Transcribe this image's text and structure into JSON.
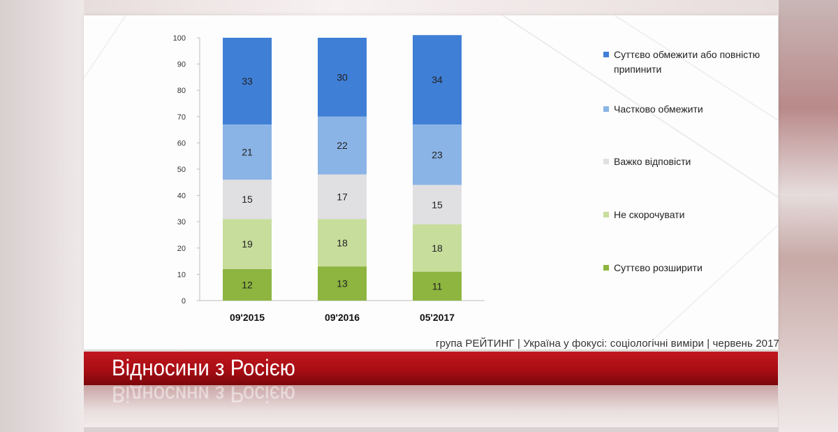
{
  "chart_data": {
    "type": "bar",
    "stacked": true,
    "categories": [
      "09'2015",
      "09'2016",
      "05'2017"
    ],
    "series": [
      {
        "name": "Суттєво розширити",
        "values": [
          12,
          13,
          11
        ],
        "color": "#8db53f"
      },
      {
        "name": "Не скорочувати",
        "values": [
          19,
          18,
          18
        ],
        "color": "#c7dd9c"
      },
      {
        "name": "Важко відповісти",
        "values": [
          15,
          17,
          15
        ],
        "color": "#e0dfe2"
      },
      {
        "name": "Частково обмежити",
        "values": [
          21,
          22,
          23
        ],
        "color": "#8bb4e6"
      },
      {
        "name": "Суттєво обмежити або повністю припинити",
        "values": [
          33,
          30,
          34
        ],
        "color": "#3f7fd6"
      }
    ],
    "ylim": [
      0,
      100
    ],
    "yticks": [
      0,
      10,
      20,
      30,
      40,
      50,
      60,
      70,
      80,
      90,
      100
    ],
    "grid": false,
    "legend_position": "right"
  },
  "legend": [
    {
      "label": "Суттєво обмежити або повністю припинити",
      "color": "#3f7fd6"
    },
    {
      "label": "Частково обмежити",
      "color": "#8bb4e6"
    },
    {
      "label": "Важко відповісти",
      "color": "#e0dfe2"
    },
    {
      "label": "Не скорочувати",
      "color": "#c7dd9c"
    },
    {
      "label": "Суттєво розширити",
      "color": "#8db53f"
    }
  ],
  "source": "група РЕЙТИНГ  |  Україна у фокусі: соціологічні виміри  |  червень 2017",
  "banner": {
    "title": "Відносини з Росією",
    "color": "#b3111a"
  }
}
